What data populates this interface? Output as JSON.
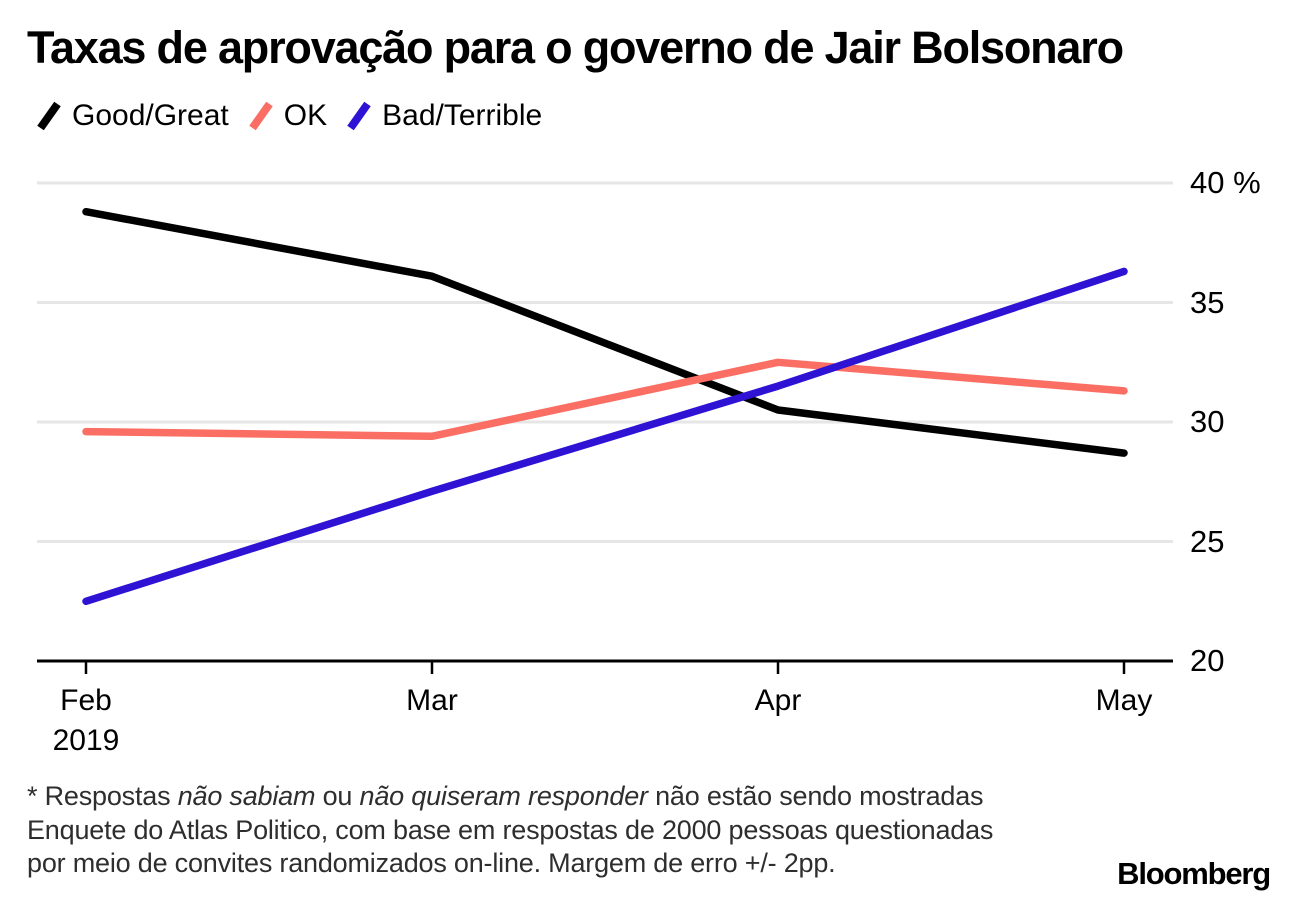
{
  "chart_data": {
    "type": "line",
    "title": "Taxas de aprovação para o governo de Jair Bolsonaro",
    "x_categories": [
      "Feb",
      "Mar",
      "Apr",
      "May"
    ],
    "x_year_label": "2019",
    "ylim": [
      20,
      40
    ],
    "yticks": [
      40,
      35,
      30,
      25,
      20
    ],
    "ytick_labels": [
      "40 %",
      "35",
      "30",
      "25",
      "20"
    ],
    "grid": "horizontal",
    "legend_position": "top-left",
    "series": [
      {
        "name": "Good/Great",
        "color": "#000000",
        "values": [
          38.8,
          36.1,
          30.5,
          28.7
        ]
      },
      {
        "name": "OK",
        "color": "#fa6e64",
        "values": [
          29.6,
          29.4,
          32.5,
          31.3
        ]
      },
      {
        "name": "Bad/Terrible",
        "color": "#2e13d4",
        "values": [
          22.5,
          27.1,
          31.5,
          36.3
        ]
      }
    ],
    "gridline_color": "#e6e6e6",
    "axis_color": "#000000"
  },
  "footnote": {
    "line1_prefix": "* Respostas ",
    "line1_italic1": "não sabiam",
    "line1_mid": " ou ",
    "line1_italic2": "não quiseram responder",
    "line1_suffix": " não estão sendo mostradas",
    "line2": "Enquete do Atlas Politico, com base em respostas de 2000 pessoas questionadas",
    "line3": "por meio de convites randomizados on-line. Margem de erro +/- 2pp."
  },
  "brand": {
    "logo_text": "Bloomberg"
  }
}
